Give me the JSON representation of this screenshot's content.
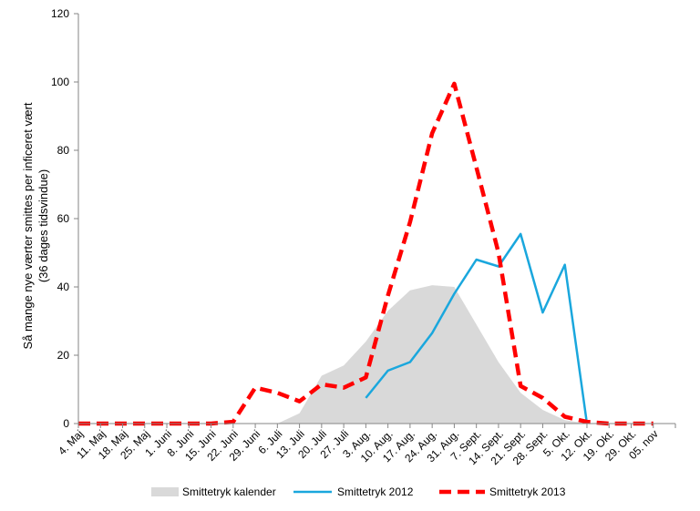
{
  "chart_data": {
    "type": "line",
    "title": "",
    "xlabel": "",
    "ylabel_line1": "Så mange nye værter smittes per inficeret vært",
    "ylabel_line2": "(36 dages tidsvindue)",
    "ylim": [
      0,
      120
    ],
    "yticks": [
      0,
      20,
      40,
      60,
      80,
      100,
      120
    ],
    "grid": false,
    "legend_position": "bottom",
    "categories": [
      "4. Maj",
      "11. Maj",
      "18. Maj",
      "25. Maj",
      "1. Juni",
      "8. Juni",
      "15. Juni",
      "22. Juni",
      "29. Juni",
      "6. Juli",
      "13. Juli",
      "20. Juli",
      "27. Juli",
      "3. Aug.",
      "10. Aug.",
      "17. Aug.",
      "24. Aug.",
      "31. Aug.",
      "7. Sept.",
      "14. Sept.",
      "21. Sept.",
      "28. Sept.",
      "5. Okt.",
      "12. Okt.",
      "19. Okt.",
      "29. Okt.",
      "05. nov"
    ],
    "series": [
      {
        "name": "Smittetryk kalender",
        "style": "area",
        "color": "#d9d9d9",
        "values": [
          0,
          0,
          0,
          0,
          0,
          0,
          0,
          0,
          0,
          0,
          3,
          14,
          17,
          24,
          33,
          39,
          40.5,
          40,
          29,
          18,
          9,
          4,
          1,
          0,
          0,
          0,
          0
        ]
      },
      {
        "name": "Smittetryk 2012",
        "style": "line",
        "color": "#1aa7dd",
        "values": [
          null,
          null,
          null,
          null,
          null,
          null,
          null,
          null,
          null,
          null,
          null,
          null,
          null,
          7.5,
          15.5,
          18,
          26.5,
          38,
          48,
          46,
          55.5,
          32.5,
          46.5,
          0,
          null,
          null,
          null
        ]
      },
      {
        "name": "Smittetryk 2013",
        "style": "dashed",
        "color": "#ff0000",
        "values": [
          0,
          0,
          0,
          0,
          0,
          0,
          0,
          0.5,
          10.5,
          9,
          6.5,
          11.5,
          10.5,
          13.5,
          37.5,
          59,
          85,
          99.5,
          75,
          50,
          11,
          7.5,
          2,
          0.5,
          0,
          0,
          0
        ]
      }
    ]
  }
}
